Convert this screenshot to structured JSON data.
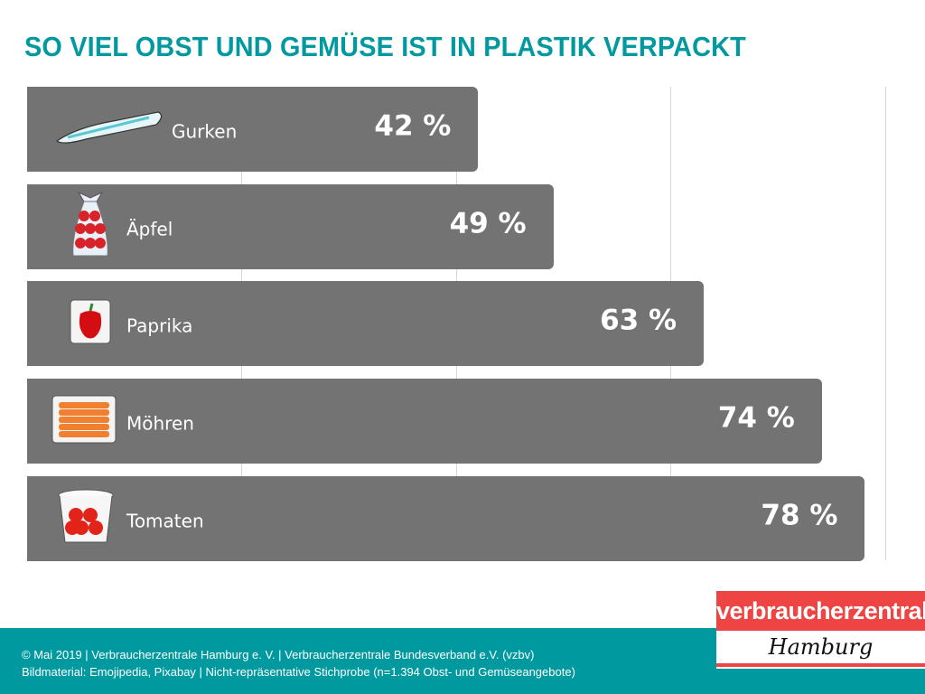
{
  "chart_data": {
    "type": "bar",
    "orientation": "horizontal",
    "title": "SO VIEL OBST UND GEMÜSE IST IN PLASTIK VERPACKT",
    "categories": [
      "Gurken",
      "Äpfel",
      "Paprika",
      "Möhren",
      "Tomaten"
    ],
    "values": [
      42,
      49,
      63,
      74,
      78
    ],
    "value_labels": [
      "42 %",
      "49 %",
      "63 %",
      "74 %",
      "78 %"
    ],
    "icons": [
      "cucumber-in-plastic-icon",
      "apples-in-bag-icon",
      "pepper-in-plastic-icon",
      "carrots-in-tray-icon",
      "tomatoes-in-tub-icon"
    ],
    "xlim": [
      0,
      100
    ],
    "grid": true,
    "grid_values": [
      20,
      40,
      60,
      80
    ],
    "bar_color": "#737373"
  },
  "footer": {
    "line1": "© Mai 2019 | Verbraucherzentrale Hamburg e. V. | Verbraucherzentrale Bundesverband e.V. (vzbv)",
    "line2": "Bildmaterial: Emojipedia, Pixabay | Nicht-repräsentative Stichprobe (n=1.394 Obst- und Gemüseangebote)"
  },
  "logo": {
    "top": "verbraucherzentrale",
    "bottom": "Hamburg"
  },
  "colors": {
    "accent": "#00999f",
    "logo_red": "#ef4444"
  }
}
